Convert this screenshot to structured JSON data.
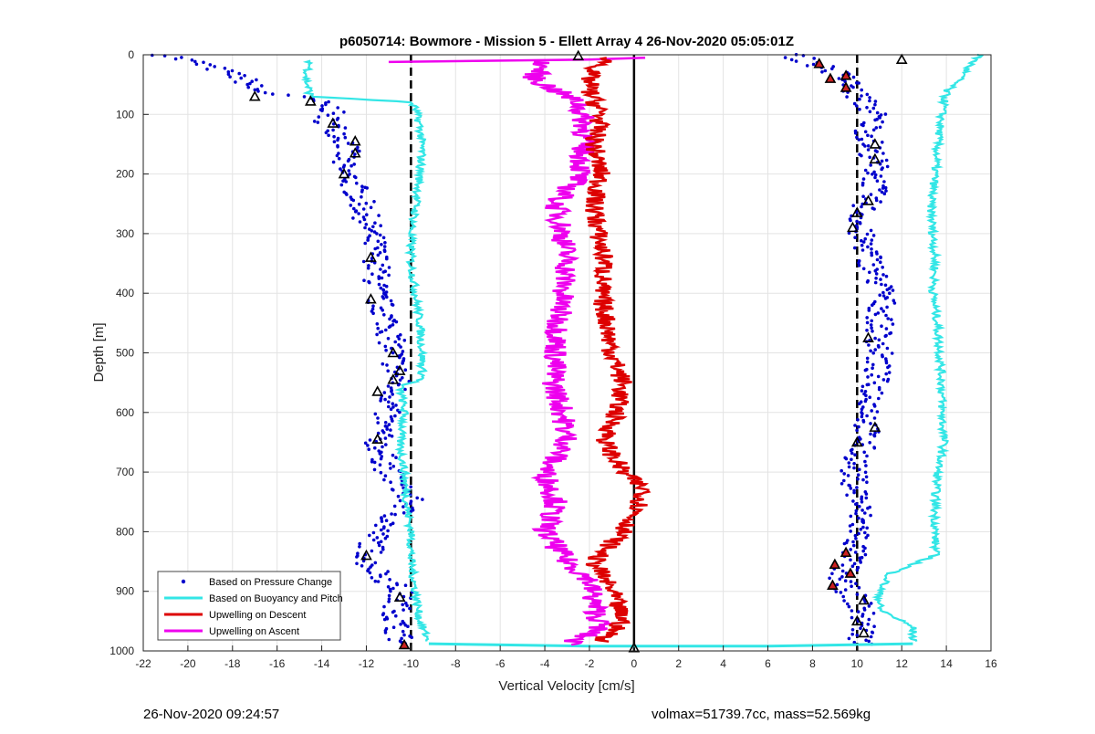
{
  "figure": {
    "footer_left": "26-Nov-2020 09:24:57",
    "footer_right": "volmax=51739.7cc, mass=52.569kg"
  },
  "chart_data": {
    "type": "line",
    "title": "p6050714: Bowmore - Mission 5 - Ellett Array 4 26-Nov-2020 05:05:01Z",
    "xlabel": "Vertical Velocity [cm/s]",
    "ylabel": "Depth [m]",
    "xlim": [
      -22,
      16
    ],
    "ylim": [
      0,
      1000
    ],
    "y_reversed": true,
    "xticks": [
      -22,
      -20,
      -18,
      -16,
      -14,
      -12,
      -10,
      -8,
      -6,
      -4,
      -2,
      0,
      2,
      4,
      6,
      8,
      10,
      12,
      14,
      16
    ],
    "yticks": [
      0,
      100,
      200,
      300,
      400,
      500,
      600,
      700,
      800,
      900,
      1000
    ],
    "grid": true,
    "legend_position": "bottom-left",
    "reference_lines": [
      {
        "x": -10,
        "style": "dashed",
        "color": "#000000"
      },
      {
        "x": 0,
        "style": "solid",
        "color": "#000000"
      },
      {
        "x": 10,
        "style": "dashed",
        "color": "#000000"
      }
    ],
    "series": [
      {
        "name": "Based on Pressure Change",
        "style": "dots",
        "color": "#0000cc",
        "branches": [
          {
            "depth": [
              0,
              20,
              40,
              60,
              75,
              90,
              110,
              130,
              150,
              170,
              190,
              210,
              250,
              300,
              350,
              400,
              450,
              500,
              550,
              600,
              650,
              700,
              750,
              800,
              850,
              900,
              950,
              990
            ],
            "velocity": [
              -21,
              -19,
              -17.5,
              -17,
              -14.5,
              -13.5,
              -13.8,
              -13.2,
              -12.8,
              -13,
              -13.2,
              -12.7,
              -12.2,
              -11.8,
              -11.5,
              -11.6,
              -11,
              -10.8,
              -10.6,
              -11.1,
              -11.5,
              -11,
              -10,
              -11.5,
              -12,
              -10.5,
              -10.7,
              -10.4
            ]
          },
          {
            "depth": [
              0,
              20,
              40,
              60,
              80,
              100,
              130,
              150,
              180,
              200,
              230,
              260,
              290,
              330,
              370,
              400,
              450,
              500,
              550,
              600,
              650,
              700,
              750,
              800,
              850,
              880,
              920,
              960,
              990
            ],
            "velocity": [
              7,
              8.5,
              9.5,
              9.8,
              10.3,
              10.8,
              10.5,
              10.6,
              10.8,
              10.9,
              10.7,
              10.3,
              10,
              10.5,
              10.8,
              11.2,
              11,
              11,
              10.8,
              10.6,
              10.3,
              9.8,
              10.1,
              10.1,
              9.7,
              9.2,
              10.1,
              10.3,
              10.2
            ]
          }
        ]
      },
      {
        "name": "Based on Buoyancy and Pitch",
        "style": "line",
        "color": "#33e6e6",
        "branches": [
          {
            "depth": [
              10,
              40,
              70,
              75,
              80,
              90,
              120,
              160,
              200,
              260,
              300,
              350,
              400,
              450,
              500,
              545,
              555,
              600,
              650,
              700,
              750,
              800,
              850,
              900,
              950,
              985
            ],
            "velocity": [
              -14.5,
              -14.7,
              -14.5,
              -12,
              -10,
              -9.8,
              -9.6,
              -9.5,
              -9.6,
              -9.8,
              -10,
              -10,
              -9.8,
              -9.6,
              -9.5,
              -9.5,
              -10.5,
              -10.3,
              -10.5,
              -10.3,
              -10.2,
              -10,
              -10,
              -9.8,
              -9.6,
              -9.2
            ]
          },
          {
            "depth": [
              0,
              20,
              45,
              60,
              100,
              150,
              200,
              250,
              300,
              350,
              400,
              450,
              500,
              550,
              600,
              650,
              700,
              750,
              800,
              840,
              870,
              900,
              930,
              960,
              985
            ],
            "velocity": [
              15.5,
              15,
              14.5,
              14,
              13.8,
              13.6,
              13.5,
              13.3,
              13.4,
              13.5,
              13.4,
              13.6,
              13.7,
              13.8,
              13.8,
              13.9,
              13.6,
              13.5,
              13.5,
              13.5,
              11.5,
              11,
              11,
              12.5,
              12.5
            ]
          }
        ]
      },
      {
        "name": "Upwelling on Descent",
        "style": "line",
        "color": "#dd0000",
        "depth": [
          5,
          30,
          60,
          100,
          150,
          200,
          250,
          300,
          350,
          400,
          450,
          500,
          550,
          600,
          650,
          700,
          730,
          760,
          800,
          850,
          900,
          950,
          985
        ],
        "velocity": [
          -1,
          -2,
          -2,
          -1.5,
          -1.8,
          -1.5,
          -1.8,
          -1.6,
          -1.3,
          -1.5,
          -1.2,
          -1,
          -0.5,
          -0.8,
          -1.3,
          -0.5,
          0.5,
          0.2,
          -0.5,
          -1.8,
          -1,
          -0.5,
          -1.5
        ]
      },
      {
        "name": "Upwelling on Ascent",
        "style": "line",
        "color": "#ee00ee",
        "depth": [
          12,
          40,
          80,
          120,
          160,
          200,
          250,
          300,
          350,
          400,
          450,
          500,
          550,
          600,
          650,
          700,
          750,
          800,
          850,
          880,
          920,
          960,
          990
        ],
        "velocity": [
          -4,
          -4.5,
          -2.5,
          -2.2,
          -2.3,
          -2.4,
          -3.5,
          -3.2,
          -3,
          -3.2,
          -3.4,
          -3.5,
          -3.6,
          -3.2,
          -3,
          -4,
          -3.5,
          -4,
          -3,
          -2,
          -1.8,
          -1.5,
          -3
        ]
      }
    ],
    "turn_markers": {
      "black_triangles": [
        {
          "velocity": -2.5,
          "depth": 2
        },
        {
          "velocity": -17,
          "depth": 70
        },
        {
          "velocity": -14.5,
          "depth": 78
        },
        {
          "velocity": -13.5,
          "depth": 115
        },
        {
          "velocity": -12.5,
          "depth": 145
        },
        {
          "velocity": -12.5,
          "depth": 165
        },
        {
          "velocity": -13,
          "depth": 200
        },
        {
          "velocity": -11.8,
          "depth": 340
        },
        {
          "velocity": -11.8,
          "depth": 410
        },
        {
          "velocity": -10.8,
          "depth": 500
        },
        {
          "velocity": -10.5,
          "depth": 530
        },
        {
          "velocity": -10.8,
          "depth": 545
        },
        {
          "velocity": -11.5,
          "depth": 565
        },
        {
          "velocity": -11.5,
          "depth": 645
        },
        {
          "velocity": -12,
          "depth": 840
        },
        {
          "velocity": -10.5,
          "depth": 910
        },
        {
          "velocity": 0,
          "depth": 995
        },
        {
          "velocity": 12,
          "depth": 8
        },
        {
          "velocity": 10.5,
          "depth": 245
        },
        {
          "velocity": 10,
          "depth": 265
        },
        {
          "velocity": 9.8,
          "depth": 290
        },
        {
          "velocity": 10.5,
          "depth": 475
        },
        {
          "velocity": 10.8,
          "depth": 625
        },
        {
          "velocity": 10,
          "depth": 650
        },
        {
          "velocity": 10.3,
          "depth": 915
        },
        {
          "velocity": 10,
          "depth": 950
        },
        {
          "velocity": 10.3,
          "depth": 970
        },
        {
          "velocity": 10.8,
          "depth": 150
        },
        {
          "velocity": 10.8,
          "depth": 175
        }
      ],
      "red_triangles": [
        {
          "velocity": 8.3,
          "depth": 15
        },
        {
          "velocity": 8.8,
          "depth": 40
        },
        {
          "velocity": 9.5,
          "depth": 35
        },
        {
          "velocity": 9.5,
          "depth": 55
        },
        {
          "velocity": 9.5,
          "depth": 835
        },
        {
          "velocity": 9,
          "depth": 855
        },
        {
          "velocity": 9.7,
          "depth": 870
        },
        {
          "velocity": 8.9,
          "depth": 890
        },
        {
          "velocity": -10.3,
          "depth": 990
        }
      ]
    }
  }
}
